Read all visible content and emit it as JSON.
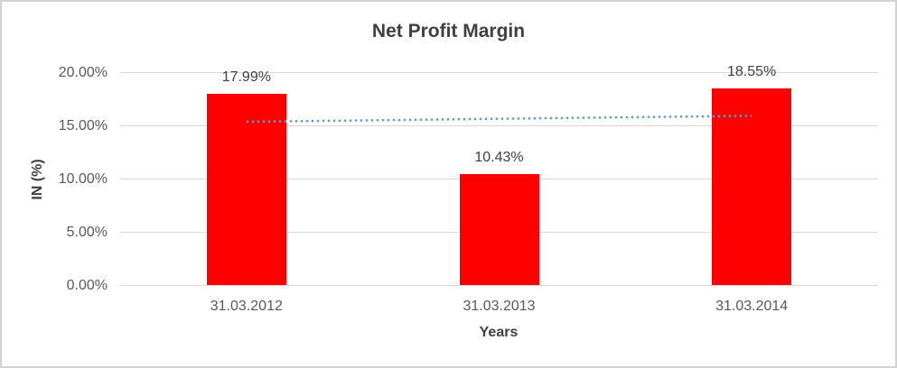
{
  "frame": {
    "background": "#ffffff",
    "border_color": "#d2d2d2"
  },
  "chart_data": {
    "type": "bar",
    "title": "Net Profit Margin",
    "xlabel": "Years",
    "ylabel": "IN (%)",
    "categories": [
      "31.03.2012",
      "31.03.2013",
      "31.03.2014"
    ],
    "values": [
      17.99,
      10.43,
      18.55
    ],
    "data_labels": [
      "17.99%",
      "10.43%",
      "18.55%"
    ],
    "ylim": [
      0,
      20
    ],
    "yticks": [
      {
        "value": 20,
        "label": "20.00%"
      },
      {
        "value": 15,
        "label": "15.00%"
      },
      {
        "value": 10,
        "label": "10.00%"
      },
      {
        "value": 5,
        "label": "5.00%"
      },
      {
        "value": 0,
        "label": "0.00%"
      }
    ],
    "grid": true,
    "legend": "none",
    "bar_color": "#ff0000",
    "gridline_color": "#d9d9d9",
    "title_color": "#404040",
    "tick_color": "#595959",
    "trendline": {
      "type": "linear",
      "style": "dotted",
      "color": "#5b9bd5",
      "start_value": 15.38,
      "end_value": 15.94
    }
  }
}
